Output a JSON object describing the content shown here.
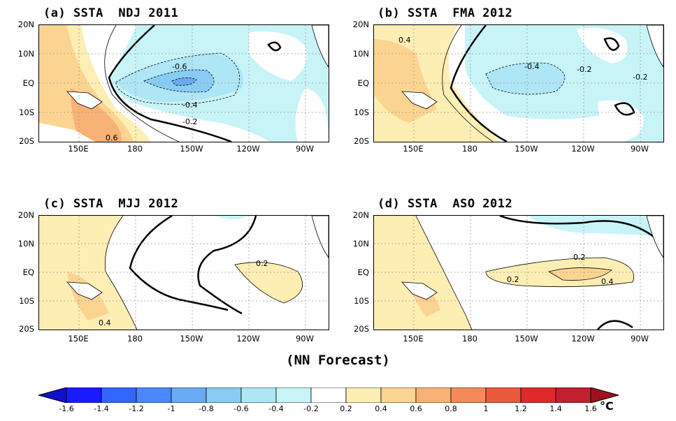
{
  "panels": [
    {
      "title": "(a) SSTA  NDJ 2011",
      "labels": [
        "-0.6",
        "-0.4",
        "-0.2",
        "0.6"
      ]
    },
    {
      "title": "(b) SSTA  FMA 2012",
      "labels": [
        "0.4",
        "-0.4",
        "-0.2",
        "-0.2"
      ]
    },
    {
      "title": "(c) SSTA  MJJ 2012",
      "labels": [
        "0.2",
        "0.4"
      ]
    },
    {
      "title": "(d) SSTA  ASO 2012",
      "labels": [
        "0.2",
        "0.2",
        "0.4"
      ]
    }
  ],
  "lat_ticks": [
    "20N",
    "10N",
    "EQ",
    "10S",
    "20S"
  ],
  "lon_ticks": [
    "150E",
    "180",
    "150W",
    "120W",
    "90W"
  ],
  "footer": "(NN Forecast)",
  "colorbar": {
    "labels": [
      "-1.6",
      "-1.4",
      "-1.2",
      "-1",
      "-0.8",
      "-0.6",
      "-0.4",
      "-0.2",
      "0.2",
      "0.4",
      "0.6",
      "0.8",
      "1",
      "1.2",
      "1.4",
      "1.6"
    ],
    "unit": "°C",
    "colors": [
      "#1a1aff",
      "#3366ff",
      "#4a88ff",
      "#6aaaf5",
      "#88ccf5",
      "#aee6f5",
      "#c8f4f8",
      "#ffffff",
      "#fdeeb4",
      "#fcd492",
      "#f8b276",
      "#f48a5a",
      "#ec5a3e",
      "#de2a2a",
      "#c41f2f"
    ]
  }
}
